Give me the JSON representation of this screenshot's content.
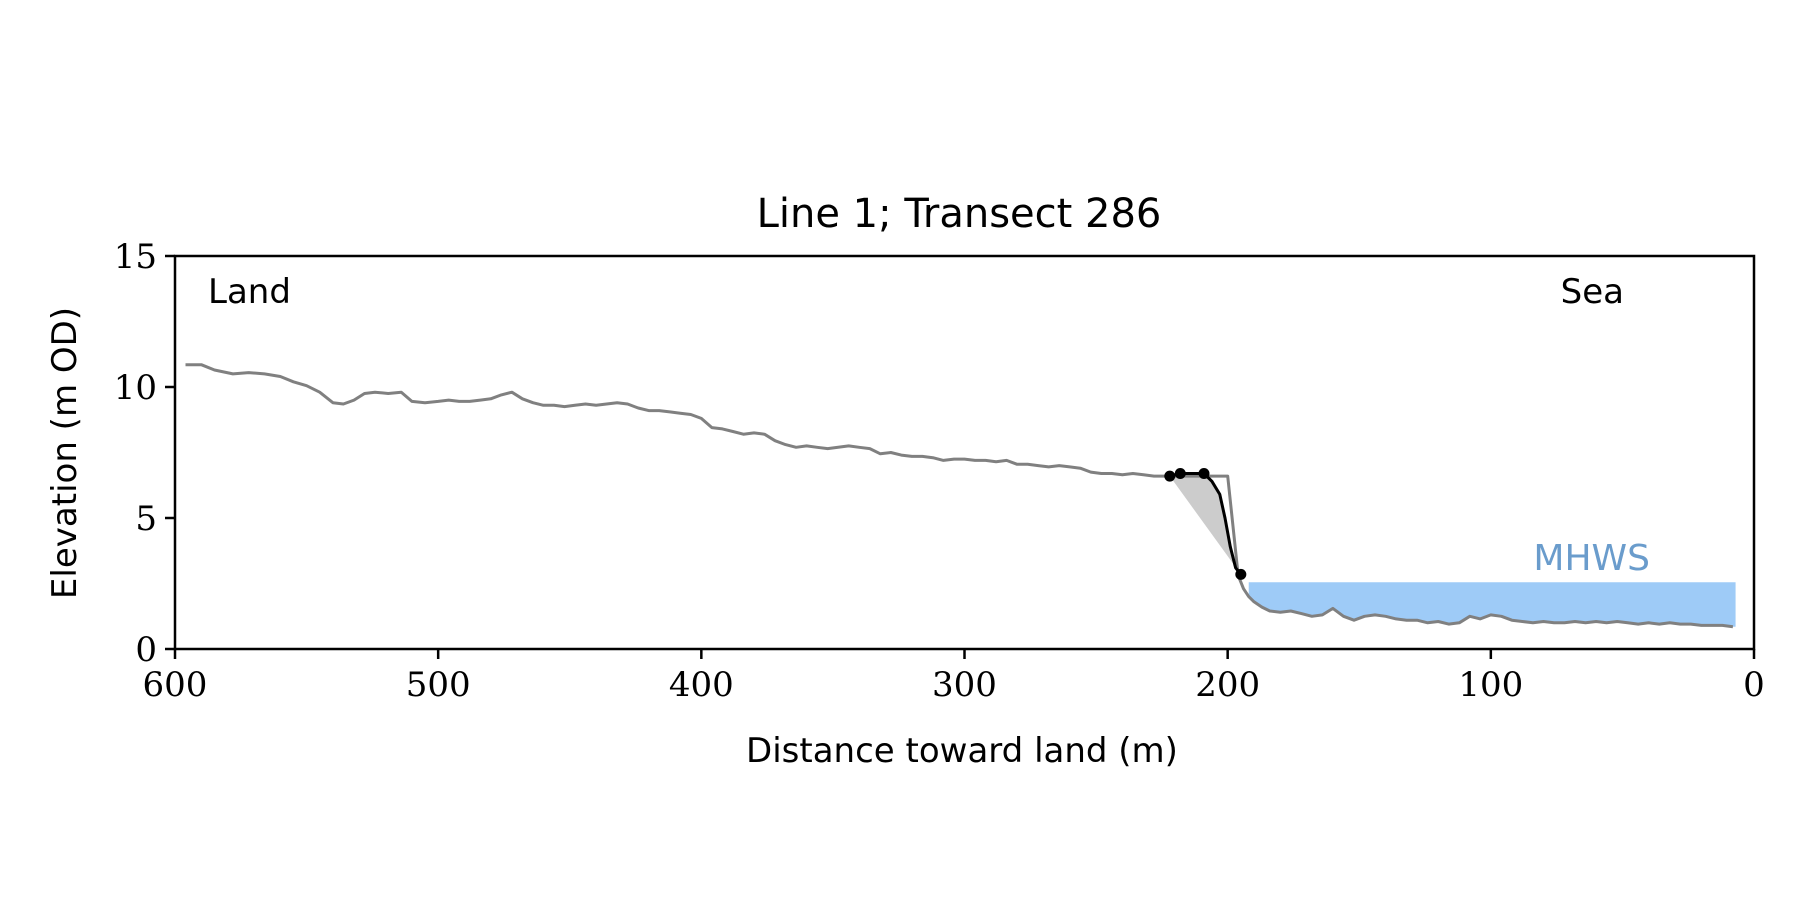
{
  "chart_data": {
    "type": "line",
    "title": "Line 1; Transect 286",
    "xlabel": "Distance toward land (m)",
    "ylabel": "Elevation (m OD)",
    "xlim": [
      600,
      0
    ],
    "ylim": [
      0,
      15
    ],
    "x_inverted": true,
    "xticks": [
      600,
      500,
      400,
      300,
      200,
      100,
      0
    ],
    "yticks": [
      0,
      5,
      10,
      15
    ],
    "grid": false,
    "annotations": {
      "land": "Land",
      "sea": "Sea",
      "mhws": "MHWS"
    },
    "mhws_level": 2.55,
    "mhws_range": [
      192,
      7
    ],
    "colors": {
      "profile": "#808080",
      "cliff": "#000000",
      "wedge": "#cccccc",
      "water": "#9ecbf7",
      "mhws_text": "#6a9ccc"
    },
    "series": [
      {
        "role": "profile",
        "x": [
          596,
          590,
          585,
          578,
          572,
          566,
          560,
          555,
          550,
          545,
          540,
          536,
          532,
          528,
          524,
          519,
          514,
          510,
          505,
          500,
          496,
          492,
          488,
          484,
          480,
          476,
          472,
          468,
          464,
          460,
          456,
          452,
          448,
          444,
          440,
          436,
          432,
          428,
          424,
          420,
          416,
          412,
          408,
          404,
          400,
          396,
          392,
          388,
          384,
          380,
          376,
          372,
          368,
          364,
          360,
          356,
          352,
          348,
          344,
          340,
          336,
          332,
          328,
          324,
          320,
          316,
          312,
          308,
          304,
          300,
          296,
          292,
          288,
          284,
          280,
          276,
          272,
          268,
          264,
          260,
          256,
          252,
          248,
          244,
          240,
          236,
          232,
          228,
          224,
          220,
          216,
          212,
          208,
          204,
          200,
          196,
          194,
          192,
          190,
          187,
          184,
          180,
          176,
          172,
          168,
          164,
          160,
          156,
          152,
          148,
          144,
          140,
          136,
          132,
          128,
          124,
          120,
          116,
          112,
          108,
          104,
          100,
          96,
          92,
          88,
          84,
          80,
          76,
          72,
          68,
          64,
          60,
          56,
          52,
          48,
          44,
          40,
          36,
          32,
          28,
          24,
          20,
          16,
          12,
          8
        ],
        "y": [
          10.85,
          10.85,
          10.65,
          10.5,
          10.55,
          10.5,
          10.4,
          10.2,
          10.05,
          9.8,
          9.4,
          9.35,
          9.5,
          9.75,
          9.8,
          9.75,
          9.8,
          9.45,
          9.4,
          9.45,
          9.5,
          9.45,
          9.45,
          9.5,
          9.55,
          9.7,
          9.8,
          9.55,
          9.4,
          9.3,
          9.3,
          9.25,
          9.3,
          9.35,
          9.3,
          9.35,
          9.4,
          9.35,
          9.2,
          9.1,
          9.1,
          9.05,
          9.0,
          8.95,
          8.8,
          8.45,
          8.4,
          8.3,
          8.2,
          8.25,
          8.2,
          7.95,
          7.8,
          7.7,
          7.75,
          7.7,
          7.65,
          7.7,
          7.75,
          7.7,
          7.65,
          7.45,
          7.5,
          7.4,
          7.35,
          7.35,
          7.3,
          7.2,
          7.25,
          7.25,
          7.2,
          7.2,
          7.15,
          7.2,
          7.05,
          7.05,
          7.0,
          6.95,
          7.0,
          6.95,
          6.9,
          6.75,
          6.7,
          6.7,
          6.65,
          6.7,
          6.65,
          6.6,
          6.6,
          6.6,
          6.6,
          6.6,
          6.6,
          6.6,
          6.6,
          2.8,
          2.3,
          2.0,
          1.8,
          1.6,
          1.45,
          1.4,
          1.45,
          1.35,
          1.25,
          1.3,
          1.55,
          1.25,
          1.1,
          1.25,
          1.3,
          1.25,
          1.15,
          1.1,
          1.1,
          1.0,
          1.05,
          0.95,
          1.0,
          1.25,
          1.15,
          1.3,
          1.25,
          1.1,
          1.05,
          1.0,
          1.05,
          1.0,
          1.0,
          1.05,
          1.0,
          1.05,
          1.0,
          1.05,
          1.0,
          0.95,
          1.0,
          0.95,
          1.0,
          0.95,
          0.95,
          0.9,
          0.9,
          0.9,
          0.85
        ]
      },
      {
        "role": "cliff",
        "x": [
          222,
          218,
          213,
          209,
          206,
          203,
          201,
          199,
          197,
          195
        ],
        "y": [
          6.6,
          6.7,
          6.7,
          6.7,
          6.4,
          5.9,
          5.0,
          3.9,
          3.1,
          2.85
        ]
      },
      {
        "role": "cliff-markers",
        "x": [
          222,
          218,
          209,
          195
        ],
        "y": [
          6.6,
          6.7,
          6.7,
          2.85
        ]
      },
      {
        "role": "wedge",
        "x": [
          222,
          218,
          213,
          209,
          206,
          203,
          201,
          199,
          197,
          195
        ],
        "y": [
          6.6,
          6.7,
          6.7,
          6.7,
          6.4,
          5.9,
          5.0,
          3.9,
          3.1,
          2.85
        ]
      }
    ]
  }
}
